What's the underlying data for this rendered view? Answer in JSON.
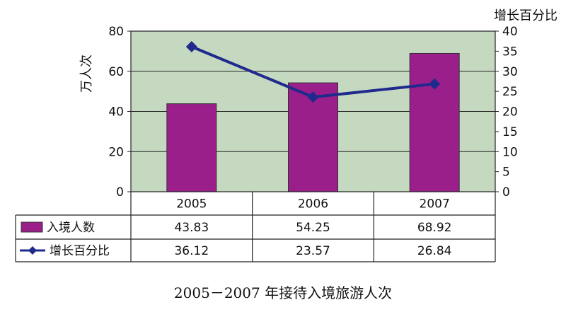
{
  "caption": "2005－2007 年接待入境旅游人次",
  "chart_data": {
    "type": "bar",
    "categories": [
      "2005",
      "2006",
      "2007"
    ],
    "y_left_label": "万人次",
    "y_left_range": [
      0,
      80
    ],
    "y_left_ticks": [
      "0",
      "20",
      "40",
      "60",
      "80"
    ],
    "y_right_label": "增长百分比",
    "y_right_range": [
      0,
      40
    ],
    "y_right_ticks": [
      "0",
      "5",
      "10",
      "15",
      "20",
      "25",
      "30",
      "35",
      "40"
    ],
    "grid": true,
    "plot_background": "#c5d9c1",
    "series": [
      {
        "name": "入境人数",
        "kind": "bar",
        "axis": "left",
        "color": "#9b1f8a",
        "values": [
          43.83,
          54.25,
          68.92
        ],
        "labels": [
          "43.83",
          "54.25",
          "68.92"
        ]
      },
      {
        "name": "增长百分比",
        "kind": "line",
        "axis": "right",
        "color": "#1f2a8c",
        "values": [
          36.12,
          23.57,
          26.84
        ],
        "labels": [
          "36.12",
          "23.57",
          "26.84"
        ]
      }
    ],
    "legend": "data-table-below"
  }
}
